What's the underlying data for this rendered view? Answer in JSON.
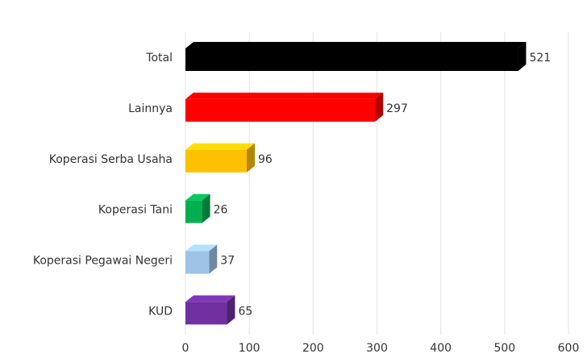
{
  "chart_data": {
    "type": "bar",
    "orientation": "horizontal",
    "three_d": true,
    "categories": [
      "Total",
      "Lainnya",
      "Koperasi Serba Usaha",
      "Koperasi Tani",
      "Koperasi Pegawai Negeri",
      "KUD"
    ],
    "values": [
      521,
      297,
      96,
      26,
      37,
      65
    ],
    "colors": [
      "#000000",
      "#ff0000",
      "#ffc000",
      "#00b050",
      "#9dc3e6",
      "#7030a0"
    ],
    "xlim": [
      0,
      600
    ],
    "xticks": [
      0,
      100,
      200,
      300,
      400,
      500,
      600
    ],
    "grid": true
  }
}
